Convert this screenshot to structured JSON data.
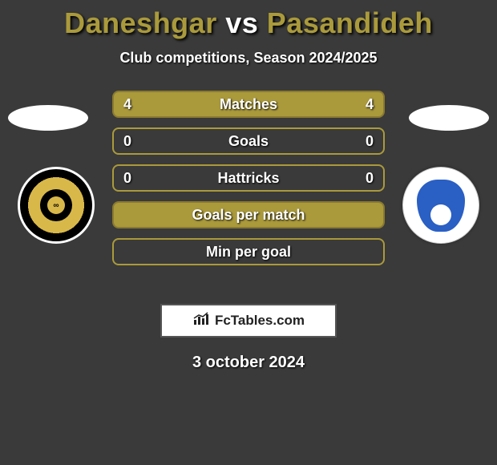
{
  "title": {
    "player1": "Daneshgar",
    "vs": "vs",
    "player2": "Pasandideh",
    "player1_color": "#aa9a3b",
    "player2_color": "#aa9a3b",
    "vs_color": "#ffffff"
  },
  "subtitle": "Club competitions, Season 2024/2025",
  "background_color": "#3a3a3a",
  "ellipse_color": "#ffffff",
  "badge_left": {
    "outer_color": "#000000",
    "ring_color": "#d9b84a",
    "border_color": "#ffffff"
  },
  "badge_right": {
    "bg_color": "#ffffff",
    "shield_color": "#2a5fc4"
  },
  "stat_rows": [
    {
      "label": "Matches",
      "left": "4",
      "right": "4",
      "fill": "#aa9a3b",
      "border": "#8a7a2f",
      "filled": true
    },
    {
      "label": "Goals",
      "left": "0",
      "right": "0",
      "fill": null,
      "border": "#aa9a3b",
      "filled": false
    },
    {
      "label": "Hattricks",
      "left": "0",
      "right": "0",
      "fill": null,
      "border": "#aa9a3b",
      "filled": false
    },
    {
      "label": "Goals per match",
      "left": "",
      "right": "",
      "fill": "#aa9a3b",
      "border": "#8a7a2f",
      "filled": true
    },
    {
      "label": "Min per goal",
      "left": "",
      "right": "",
      "fill": null,
      "border": "#aa9a3b",
      "filled": false
    }
  ],
  "footer": {
    "text": "FcTables.com",
    "icon": "chart-icon",
    "bg_color": "#ffffff",
    "text_color": "#222222"
  },
  "date": "3 october 2024"
}
